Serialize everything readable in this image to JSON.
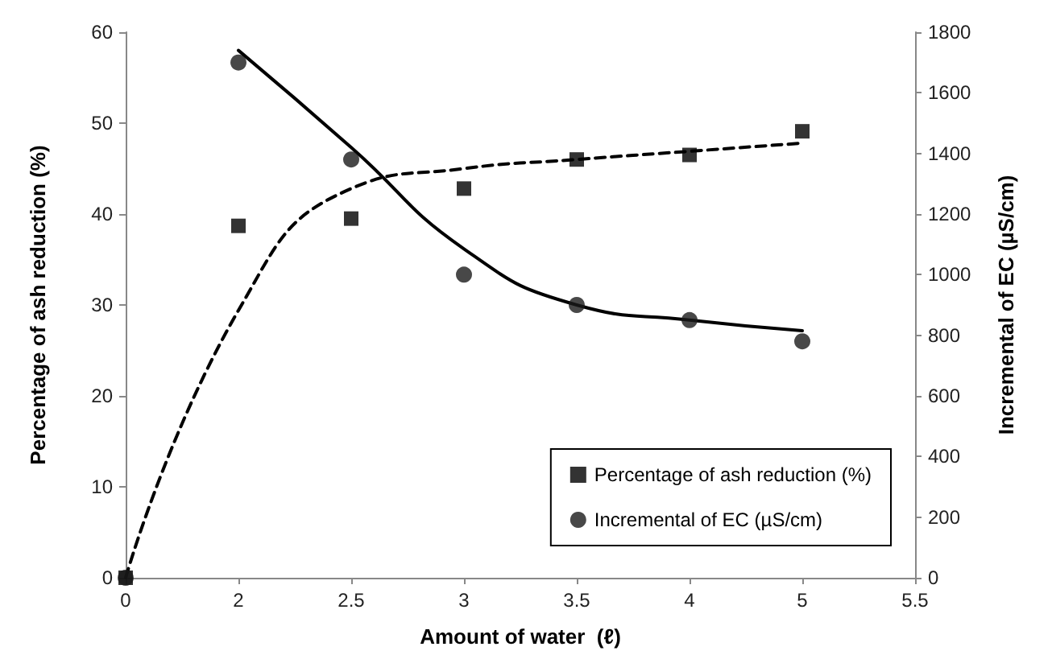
{
  "chart_data": {
    "type": "scatter",
    "xlabel": "Amount of water  (ℓ)",
    "ylabel": "Percentage of ash reduction (%)",
    "y2label": "Incremental of EC (µS/cm)",
    "categories": [
      "0",
      "2",
      "2.5",
      "3",
      "3.5",
      "4",
      "5",
      "5.5"
    ],
    "series": [
      {
        "name": "Percentage of ash reduction (%)",
        "marker": "square",
        "color": "#000000",
        "values": [
          0,
          38.7,
          39.5,
          42.8,
          46.0,
          46.5,
          49.1,
          null
        ]
      },
      {
        "name": "Incremental of EC (µS/cm)",
        "marker": "circle",
        "axis": "y2",
        "color": "#1a1a1a",
        "values": [
          0,
          1700,
          1380,
          1000,
          900,
          850,
          780,
          null
        ]
      },
      {
        "type": "line",
        "marker": "none",
        "line_style": "dashed",
        "color": "#000000",
        "values": [
          0,
          29.4,
          42.8,
          45.0,
          46.0,
          46.9,
          47.8,
          null
        ]
      },
      {
        "type": "line",
        "marker": "none",
        "line_style": "solid",
        "axis": "y2",
        "color": "#000000",
        "values": [
          null,
          1740,
          1420,
          1085,
          900,
          850,
          815,
          null
        ]
      }
    ],
    "ylim": [
      0,
      60
    ],
    "yticks": [
      0,
      10,
      20,
      30,
      40,
      50,
      60
    ],
    "y2lim": [
      0,
      1800
    ],
    "y2ticks": [
      0,
      200,
      400,
      600,
      800,
      1000,
      1200,
      1400,
      1600,
      1800
    ],
    "grid": false,
    "legend": "bottom right"
  }
}
